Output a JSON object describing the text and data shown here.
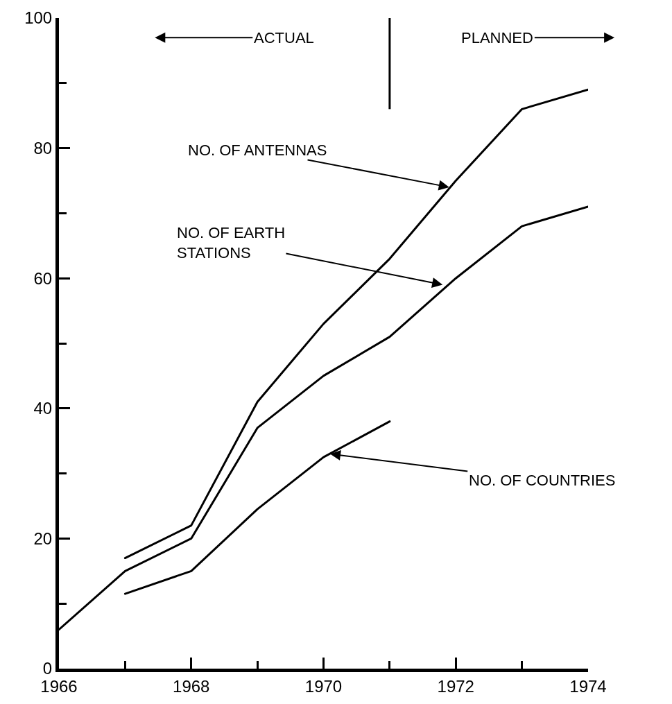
{
  "chart_data": {
    "type": "line",
    "x": [
      1966,
      1967,
      1968,
      1969,
      1970,
      1971,
      1972,
      1973,
      1974
    ],
    "series": [
      {
        "color": "#000000",
        "values": [
          null,
          17,
          22,
          41,
          53,
          63,
          75,
          86,
          89
        ]
      },
      {
        "color": "#000000",
        "values": [
          6,
          15,
          20,
          37,
          45,
          51,
          60,
          68,
          71
        ]
      },
      {
        "color": "#000000",
        "values": [
          null,
          11.5,
          15,
          24.5,
          32.5,
          38,
          null,
          null,
          null
        ]
      }
    ],
    "xlim": [
      1966,
      1974
    ],
    "xticks": [
      1966,
      {
        "value": 1967,
        "label": null
      },
      1968,
      {
        "value": 1969,
        "label": null
      },
      1970,
      {
        "value": 1971,
        "label": null
      },
      1972,
      {
        "value": 1973,
        "label": null
      },
      1974
    ],
    "ylim": [
      0,
      100
    ],
    "yticks": [
      0,
      {
        "value": 10,
        "label": null
      },
      20,
      {
        "value": 30,
        "label": null
      },
      40,
      {
        "value": 50,
        "label": null
      },
      60,
      {
        "value": 70,
        "label": null
      },
      80,
      {
        "value": 90,
        "label": null
      },
      100
    ],
    "ref_lines": [
      {
        "axis": "x",
        "value": 1971
      }
    ],
    "marker": "none",
    "line_style": "solid",
    "annotations": [
      "ACTUAL",
      "PLANNED",
      {
        "text": "NO. OF ANTENNAS",
        "x": 1971.9,
        "y": 74
      },
      {
        "text": "NO. OF EARTH\nSTATIONS",
        "x": 1971.8,
        "y": 59
      },
      {
        "text": "NO. OF COUNTRIES",
        "x": 1970.1,
        "y": 33
      }
    ]
  }
}
